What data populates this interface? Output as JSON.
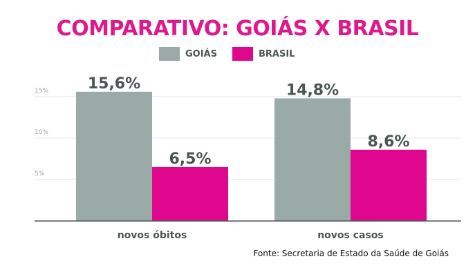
{
  "chart_data": {
    "type": "bar",
    "title": "COMPARATIVO: GOIÁS X BRASIL",
    "categories": [
      "novos óbitos",
      "novos casos"
    ],
    "series": [
      {
        "name": "GOIÁS",
        "color": "#9aaaa7",
        "values": [
          15.6,
          14.8
        ],
        "labels": [
          "15,6%",
          "14,8%"
        ]
      },
      {
        "name": "BRASIL",
        "color": "#e0078f",
        "values": [
          6.5,
          8.6
        ],
        "labels": [
          "6,5%",
          "8,6%"
        ]
      }
    ],
    "yticks": [
      5,
      10,
      15
    ],
    "ytick_labels": [
      "5%",
      "10%",
      "15%"
    ],
    "ylim": [
      0,
      19
    ],
    "grid": true,
    "legend": "top-center",
    "source": "Fonte: Secretaria de Estado da Saúde de Goiás",
    "title_color": "#dd1a8b"
  }
}
